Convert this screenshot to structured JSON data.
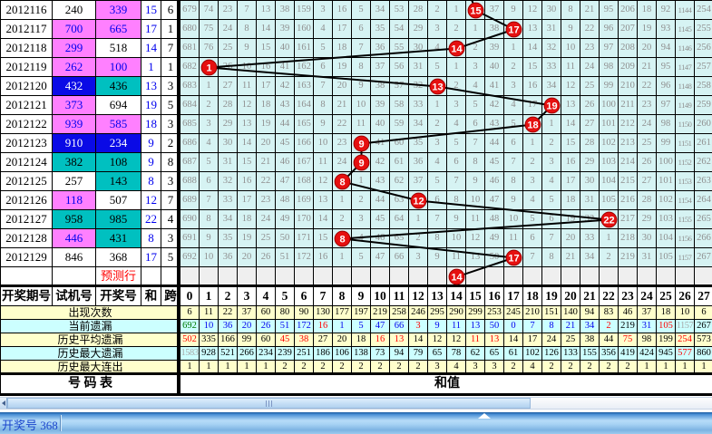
{
  "colors": {
    "pink": "#ff80ff",
    "blue": "#0a0ae6",
    "teal": "#00c0c0",
    "grid_cell": "#d6f3f3",
    "stat_yellow": "#ffffcc",
    "stat_cyan": "#ccffff",
    "marker_red": "#e61010",
    "blue_text": "#0000ee",
    "red_text": "#ff0000",
    "green_text": "#007800"
  },
  "left_table": {
    "headers": [
      "开奖期号",
      "试机号",
      "开奖号",
      "和",
      "跨"
    ],
    "rows": [
      {
        "period": "2012116",
        "test": "240",
        "test_bg": "w",
        "draw": "339",
        "draw_bg": "p",
        "sum": "15",
        "span": "6"
      },
      {
        "period": "2012117",
        "test": "700",
        "test_bg": "p",
        "draw": "665",
        "draw_bg": "p",
        "sum": "17",
        "span": "1"
      },
      {
        "period": "2012118",
        "test": "299",
        "test_bg": "p",
        "draw": "518",
        "draw_bg": "w",
        "sum": "14",
        "span": "7"
      },
      {
        "period": "2012119",
        "test": "262",
        "test_bg": "p",
        "draw": "100",
        "draw_bg": "p",
        "sum": "1",
        "span": "1"
      },
      {
        "period": "2012120",
        "test": "432",
        "test_bg": "b",
        "draw": "436",
        "draw_bg": "t",
        "sum": "13",
        "span": "3"
      },
      {
        "period": "2012121",
        "test": "373",
        "test_bg": "p",
        "draw": "694",
        "draw_bg": "w",
        "sum": "19",
        "span": "5"
      },
      {
        "period": "2012122",
        "test": "939",
        "test_bg": "p",
        "draw": "585",
        "draw_bg": "p",
        "sum": "18",
        "span": "3"
      },
      {
        "period": "2012123",
        "test": "910",
        "test_bg": "b",
        "draw": "234",
        "draw_bg": "b",
        "sum": "9",
        "span": "2"
      },
      {
        "period": "2012124",
        "test": "382",
        "test_bg": "t",
        "draw": "108",
        "draw_bg": "t",
        "sum": "9",
        "span": "8"
      },
      {
        "period": "2012125",
        "test": "257",
        "test_bg": "w",
        "draw": "143",
        "draw_bg": "t",
        "sum": "8",
        "span": "3"
      },
      {
        "period": "2012126",
        "test": "118",
        "test_bg": "p",
        "draw": "507",
        "draw_bg": "w",
        "sum": "12",
        "span": "7"
      },
      {
        "period": "2012127",
        "test": "958",
        "test_bg": "t",
        "draw": "985",
        "draw_bg": "t",
        "sum": "22",
        "span": "4"
      },
      {
        "period": "2012128",
        "test": "446",
        "test_bg": "p",
        "draw": "431",
        "draw_bg": "t",
        "sum": "8",
        "span": "3"
      },
      {
        "period": "2012129",
        "test": "846",
        "test_bg": "w",
        "draw": "368",
        "draw_bg": "w",
        "sum": "17",
        "span": "5"
      }
    ],
    "prediction_label": "预测行"
  },
  "grid": {
    "column_headers": [
      "0",
      "1",
      "2",
      "3",
      "4",
      "5",
      "6",
      "7",
      "8",
      "9",
      "10",
      "11",
      "12",
      "13",
      "14",
      "15",
      "16",
      "17",
      "18",
      "19",
      "20",
      "21",
      "22",
      "23",
      "24",
      "25",
      "26",
      "27"
    ],
    "rows": [
      {
        "hit_col": 15,
        "cells": [
          679,
          74,
          23,
          7,
          13,
          38,
          159,
          3,
          16,
          5,
          34,
          53,
          28,
          2,
          1,
          15,
          37,
          9,
          12,
          30,
          8,
          21,
          95,
          206,
          18,
          92,
          1144,
          254
        ]
      },
      {
        "hit_col": 17,
        "cells": [
          680,
          75,
          24,
          8,
          14,
          39,
          160,
          4,
          17,
          6,
          35,
          54,
          29,
          3,
          2,
          1,
          38,
          17,
          13,
          31,
          9,
          22,
          96,
          207,
          19,
          93,
          1145,
          255
        ]
      },
      {
        "hit_col": 14,
        "cells": [
          681,
          76,
          25,
          9,
          15,
          40,
          161,
          5,
          18,
          7,
          36,
          55,
          30,
          4,
          14,
          2,
          39,
          1,
          14,
          32,
          10,
          23,
          97,
          208,
          20,
          94,
          1146,
          256
        ]
      },
      {
        "hit_col": 1,
        "cells": [
          682,
          1,
          26,
          10,
          16,
          41,
          162,
          6,
          19,
          8,
          37,
          56,
          31,
          5,
          1,
          3,
          40,
          2,
          15,
          33,
          11,
          24,
          98,
          209,
          21,
          95,
          1147,
          257
        ]
      },
      {
        "hit_col": 13,
        "cells": [
          683,
          1,
          27,
          11,
          17,
          42,
          163,
          7,
          20,
          9,
          38,
          57,
          32,
          13,
          2,
          4,
          41,
          3,
          16,
          34,
          12,
          25,
          99,
          210,
          22,
          96,
          1148,
          258
        ]
      },
      {
        "hit_col": 19,
        "cells": [
          684,
          2,
          28,
          12,
          18,
          43,
          164,
          8,
          21,
          10,
          39,
          58,
          33,
          1,
          3,
          5,
          42,
          4,
          17,
          19,
          13,
          26,
          100,
          211,
          23,
          97,
          1149,
          259
        ]
      },
      {
        "hit_col": 18,
        "cells": [
          685,
          3,
          29,
          13,
          19,
          44,
          165,
          9,
          22,
          11,
          40,
          59,
          34,
          2,
          4,
          6,
          43,
          5,
          18,
          1,
          14,
          27,
          101,
          212,
          24,
          98,
          1150,
          260
        ]
      },
      {
        "hit_col": 9,
        "cells": [
          686,
          4,
          30,
          14,
          20,
          45,
          166,
          10,
          23,
          9,
          41,
          60,
          35,
          3,
          5,
          7,
          44,
          6,
          1,
          2,
          15,
          28,
          102,
          213,
          25,
          99,
          1151,
          261
        ]
      },
      {
        "hit_col": 9,
        "cells": [
          687,
          5,
          31,
          15,
          21,
          46,
          167,
          11,
          24,
          9,
          42,
          61,
          36,
          4,
          6,
          8,
          45,
          7,
          2,
          3,
          16,
          29,
          103,
          214,
          26,
          100,
          1152,
          262
        ]
      },
      {
        "hit_col": 8,
        "cells": [
          688,
          6,
          32,
          16,
          22,
          47,
          168,
          12,
          8,
          1,
          43,
          62,
          37,
          5,
          7,
          9,
          46,
          8,
          3,
          4,
          17,
          30,
          104,
          215,
          27,
          101,
          1153,
          263
        ]
      },
      {
        "hit_col": 12,
        "cells": [
          689,
          7,
          33,
          17,
          23,
          48,
          169,
          13,
          1,
          2,
          44,
          63,
          12,
          6,
          8,
          10,
          47,
          9,
          4,
          5,
          18,
          31,
          105,
          216,
          28,
          102,
          1154,
          264
        ]
      },
      {
        "hit_col": 22,
        "cells": [
          690,
          8,
          34,
          18,
          24,
          49,
          170,
          14,
          2,
          3,
          45,
          64,
          1,
          7,
          9,
          11,
          48,
          10,
          5,
          6,
          19,
          32,
          22,
          217,
          29,
          103,
          1155,
          265
        ]
      },
      {
        "hit_col": 8,
        "cells": [
          691,
          9,
          35,
          19,
          25,
          50,
          171,
          15,
          8,
          4,
          46,
          65,
          2,
          8,
          10,
          12,
          49,
          11,
          6,
          7,
          20,
          33,
          1,
          218,
          30,
          104,
          1156,
          266
        ]
      },
      {
        "hit_col": 17,
        "cells": [
          692,
          10,
          36,
          20,
          26,
          51,
          172,
          16,
          1,
          5,
          47,
          66,
          3,
          9,
          11,
          13,
          50,
          17,
          7,
          8,
          21,
          34,
          2,
          219,
          31,
          105,
          1157,
          267
        ]
      }
    ],
    "prediction": {
      "hit_col": 14
    }
  },
  "stats": [
    {
      "label": "出现次数",
      "bg": "y",
      "values": [
        6,
        11,
        22,
        37,
        60,
        80,
        90,
        130,
        177,
        197,
        219,
        258,
        246,
        295,
        290,
        299,
        253,
        245,
        210,
        151,
        140,
        94,
        83,
        46,
        37,
        18,
        10,
        6
      ]
    },
    {
      "label": "当前遗漏",
      "bg": "c",
      "values": [
        692,
        10,
        36,
        20,
        26,
        51,
        172,
        16,
        1,
        5,
        47,
        66,
        3,
        9,
        11,
        13,
        50,
        0,
        7,
        8,
        21,
        34,
        2,
        219,
        31,
        105,
        1157,
        267
      ],
      "colors": "gbbbbbbrbbbbrbbbbbbbbbrkbryk"
    },
    {
      "label": "历史平均遗漏",
      "bg": "y",
      "values": [
        502,
        335,
        166,
        99,
        60,
        45,
        38,
        27,
        20,
        18,
        16,
        13,
        14,
        12,
        12,
        11,
        13,
        14,
        17,
        24,
        25,
        38,
        44,
        75,
        98,
        199,
        254,
        573
      ],
      "colors": "rkkkkrrkkkrrkkkrrkkkkkkrkkrk"
    },
    {
      "label": "历史最大遗漏",
      "bg": "c",
      "values": [
        1583,
        928,
        521,
        266,
        234,
        239,
        251,
        186,
        106,
        138,
        73,
        94,
        79,
        65,
        78,
        62,
        65,
        61,
        102,
        126,
        133,
        155,
        356,
        419,
        424,
        945,
        577,
        860
      ],
      "colors": "ykkkkkkkkkkkkkkkkkkkkkkkkkrk"
    },
    {
      "label": "历史最大连出",
      "bg": "y",
      "values": [
        1,
        1,
        1,
        1,
        1,
        2,
        2,
        2,
        2,
        2,
        2,
        2,
        2,
        3,
        4,
        3,
        3,
        2,
        4,
        2,
        2,
        2,
        2,
        2,
        1,
        1,
        1,
        1
      ]
    }
  ],
  "footer": {
    "left": "号  码  表",
    "right": "和值"
  },
  "statusbar": {
    "text": "开奖号 368"
  }
}
